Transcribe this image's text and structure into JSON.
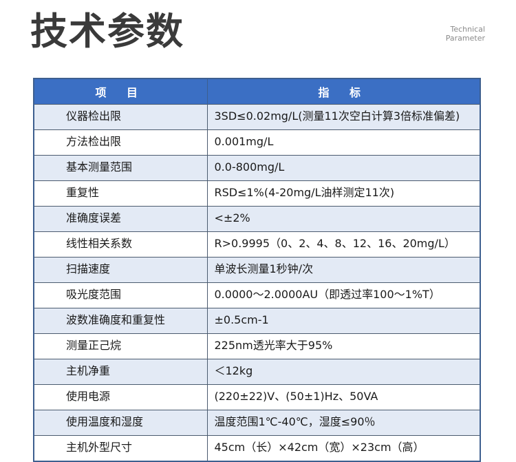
{
  "header": {
    "title": "技术参数",
    "subtitle": [
      "Technical",
      "Parameter"
    ]
  },
  "table": {
    "columns": [
      "项 目",
      "指 标"
    ],
    "rows": [
      [
        "仪器检出限",
        "3SD≤0.02mg/L(测量11次空白计算3倍标准偏差)"
      ],
      [
        "方法检出限",
        "0.001mg/L"
      ],
      [
        "基本测量范围",
        "0.0-800mg/L"
      ],
      [
        "重复性",
        "RSD≤1%(4-20mg/L油样测定11次)"
      ],
      [
        "准确度误差",
        "<±2%"
      ],
      [
        "线性相关系数",
        "R>0.9995（0、2、4、8、12、16、20mg/L）"
      ],
      [
        "扫描速度",
        "单波长测量1秒钟/次"
      ],
      [
        "吸光度范围",
        "0.0000～2.0000AU（即透过率100～1%T）"
      ],
      [
        "波数准确度和重复性",
        "±0.5cm-1"
      ],
      [
        "测量正己烷",
        "225nm透光率大于95%"
      ],
      [
        "主机净重",
        "＜12kg"
      ],
      [
        "使用电源",
        "(220±22)V、(50±1)Hz、50VA"
      ],
      [
        "使用温度和湿度",
        "温度范围1℃-40℃，湿度≤90％"
      ],
      [
        "主机外型尺寸",
        "45cm（长）×42cm（宽）×23cm（高）"
      ]
    ]
  }
}
